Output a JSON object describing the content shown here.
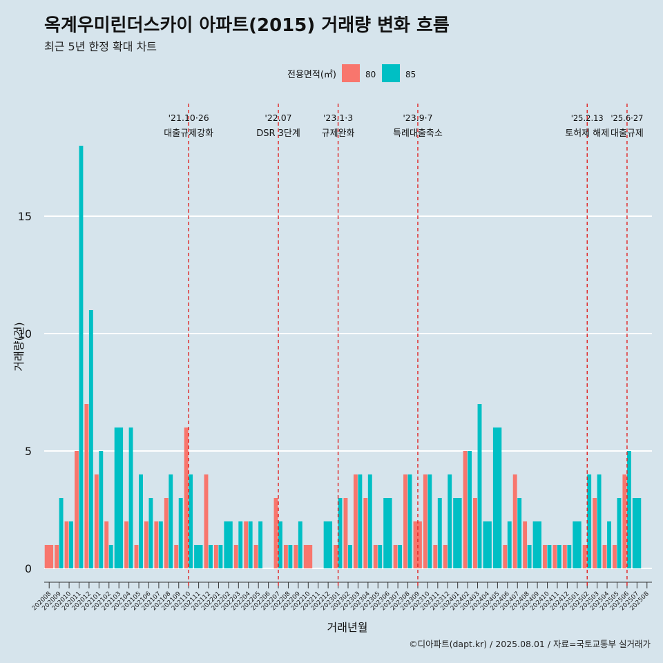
{
  "title": "옥계우미린더스카이 아파트(2015) 거래량 변화 흐름",
  "subtitle": "최근 5년 한정 확대 차트",
  "caption": "©디아파트(dapt.kr) / 2025.08.01 / 자료=국토교통부 실거래가",
  "chart_data": {
    "type": "bar",
    "xlabel": "거래년월",
    "ylabel": "거래량(건)",
    "ylim": [
      0,
      18
    ],
    "yticks": [
      0,
      5,
      10,
      15
    ],
    "legend": {
      "title": "전용면적(㎡)",
      "placement": "top"
    },
    "categories": [
      "202008",
      "202009",
      "202010",
      "202011",
      "202012",
      "202101",
      "202102",
      "202103",
      "202104",
      "202105",
      "202106",
      "202107",
      "202108",
      "202109",
      "202110",
      "202111",
      "202112",
      "202201",
      "202202",
      "202203",
      "202204",
      "202205",
      "202206",
      "202207",
      "202208",
      "202209",
      "202210",
      "202211",
      "202212",
      "202301",
      "202302",
      "202303",
      "202304",
      "202305",
      "202306",
      "202307",
      "202308",
      "202309",
      "202310",
      "202311",
      "202312",
      "202401",
      "202402",
      "202403",
      "202404",
      "202405",
      "202406",
      "202407",
      "202408",
      "202409",
      "202410",
      "202411",
      "202412",
      "202501",
      "202502",
      "202503",
      "202504",
      "202505",
      "202506",
      "202507",
      "202508"
    ],
    "series": [
      {
        "name": "80",
        "color": "#f8766d",
        "values": [
          1,
          1,
          2,
          5,
          7,
          4,
          2,
          0,
          2,
          1,
          2,
          2,
          3,
          1,
          6,
          0,
          4,
          1,
          0,
          1,
          2,
          1,
          0,
          3,
          1,
          1,
          1,
          0,
          0,
          1,
          3,
          4,
          3,
          1,
          0,
          1,
          4,
          2,
          4,
          1,
          1,
          0,
          5,
          3,
          0,
          0,
          1,
          4,
          2,
          0,
          1,
          1,
          1,
          0,
          1,
          3,
          1,
          1,
          4,
          0,
          0
        ]
      },
      {
        "name": "85",
        "color": "#00bfc4",
        "values": [
          0,
          3,
          2,
          18,
          11,
          5,
          1,
          6,
          6,
          4,
          3,
          2,
          4,
          3,
          4,
          1,
          1,
          1,
          2,
          2,
          2,
          2,
          0,
          2,
          1,
          2,
          0,
          0,
          2,
          3,
          1,
          4,
          4,
          1,
          3,
          1,
          4,
          0,
          4,
          3,
          4,
          3,
          5,
          7,
          2,
          6,
          2,
          3,
          1,
          2,
          1,
          1,
          1,
          2,
          4,
          4,
          2,
          3,
          5,
          3,
          0
        ]
      }
    ],
    "events": [
      {
        "category": "202110",
        "date": "'21.10·26",
        "label": "대출규제강화"
      },
      {
        "category": "202207",
        "date": "'22.07",
        "label": "DSR 3단계"
      },
      {
        "category": "202301",
        "date": "'23.1·3",
        "label": "규제완화"
      },
      {
        "category": "202309",
        "date": "'23.9·7",
        "label": "특례대출축소"
      },
      {
        "category": "202502",
        "date": "'25.2.13",
        "label": "토허제 해제"
      },
      {
        "category": "202506",
        "date": "'25.6·27",
        "label": "대출규제"
      }
    ]
  }
}
